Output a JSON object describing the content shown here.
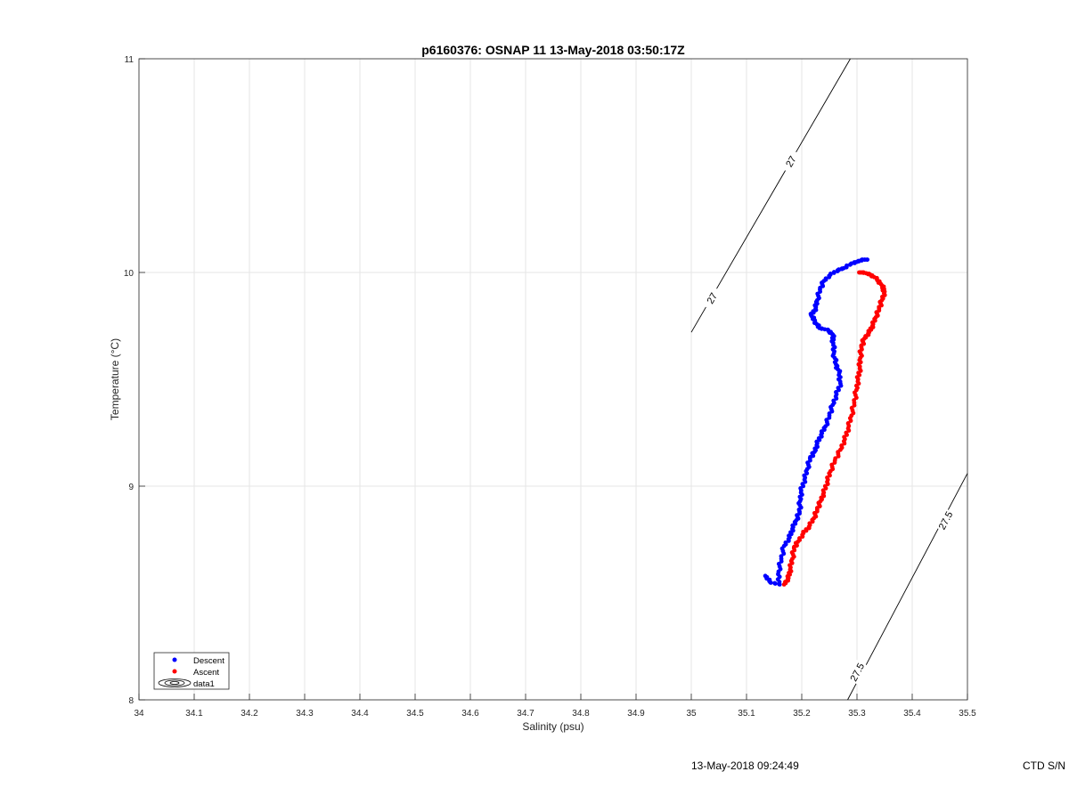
{
  "chart_data": {
    "type": "scatter",
    "title": "p6160376: OSNAP 11 13-May-2018 03:50:17Z",
    "xlabel": "Salinity (psu)",
    "ylabel": "Temperature (°C)",
    "xlim": [
      34,
      35.5
    ],
    "ylim": [
      8,
      11
    ],
    "xticks": [
      "34",
      "34.1",
      "34.2",
      "34.3",
      "34.4",
      "34.5",
      "34.6",
      "34.7",
      "34.8",
      "34.9",
      "35",
      "35.1",
      "35.2",
      "35.3",
      "35.4",
      "35.5"
    ],
    "yticks": [
      "8",
      "9",
      "10",
      "11"
    ],
    "grid": true,
    "legend_position": "bottom-left",
    "legend": [
      "Descent",
      "Ascent",
      "data1"
    ],
    "colors": {
      "descent": "#0000ff",
      "ascent": "#ff0000",
      "contour": "#000000",
      "grid": "#e6e6e6"
    },
    "series": [
      {
        "name": "Descent",
        "color": "#0000ff",
        "points": [
          [
            35.134,
            8.58
          ],
          [
            35.143,
            8.55
          ],
          [
            35.16,
            8.54
          ],
          [
            35.158,
            8.6
          ],
          [
            35.163,
            8.66
          ],
          [
            35.168,
            8.72
          ],
          [
            35.178,
            8.76
          ],
          [
            35.183,
            8.8
          ],
          [
            35.19,
            8.84
          ],
          [
            35.196,
            8.88
          ],
          [
            35.197,
            8.93
          ],
          [
            35.199,
            8.98
          ],
          [
            35.205,
            9.03
          ],
          [
            35.21,
            9.08
          ],
          [
            35.215,
            9.13
          ],
          [
            35.223,
            9.16
          ],
          [
            35.228,
            9.2
          ],
          [
            35.235,
            9.24
          ],
          [
            35.243,
            9.28
          ],
          [
            35.25,
            9.33
          ],
          [
            35.256,
            9.38
          ],
          [
            35.263,
            9.43
          ],
          [
            35.27,
            9.48
          ],
          [
            35.268,
            9.53
          ],
          [
            35.262,
            9.57
          ],
          [
            35.258,
            9.62
          ],
          [
            35.257,
            9.67
          ],
          [
            35.256,
            9.71
          ],
          [
            35.248,
            9.73
          ],
          [
            35.232,
            9.74
          ],
          [
            35.224,
            9.77
          ],
          [
            35.217,
            9.8
          ],
          [
            35.225,
            9.83
          ],
          [
            35.228,
            9.87
          ],
          [
            35.233,
            9.92
          ],
          [
            35.24,
            9.96
          ],
          [
            35.252,
            9.99
          ],
          [
            35.265,
            10.01
          ],
          [
            35.276,
            10.02
          ],
          [
            35.289,
            10.04
          ],
          [
            35.3,
            10.05
          ],
          [
            35.31,
            10.06
          ],
          [
            35.318,
            10.06
          ]
        ]
      },
      {
        "name": "Ascent",
        "color": "#ff0000",
        "points": [
          [
            35.168,
            8.54
          ],
          [
            35.176,
            8.57
          ],
          [
            35.179,
            8.61
          ],
          [
            35.183,
            8.66
          ],
          [
            35.186,
            8.71
          ],
          [
            35.193,
            8.74
          ],
          [
            35.203,
            8.78
          ],
          [
            35.213,
            8.81
          ],
          [
            35.222,
            8.85
          ],
          [
            35.228,
            8.89
          ],
          [
            35.234,
            8.93
          ],
          [
            35.24,
            8.97
          ],
          [
            35.246,
            9.02
          ],
          [
            35.252,
            9.07
          ],
          [
            35.26,
            9.12
          ],
          [
            35.27,
            9.17
          ],
          [
            35.278,
            9.22
          ],
          [
            35.284,
            9.27
          ],
          [
            35.29,
            9.33
          ],
          [
            35.295,
            9.39
          ],
          [
            35.299,
            9.45
          ],
          [
            35.302,
            9.5
          ],
          [
            35.305,
            9.55
          ],
          [
            35.306,
            9.6
          ],
          [
            35.308,
            9.65
          ],
          [
            35.313,
            9.69
          ],
          [
            35.322,
            9.72
          ],
          [
            35.328,
            9.75
          ],
          [
            35.334,
            9.79
          ],
          [
            35.34,
            9.83
          ],
          [
            35.345,
            9.87
          ],
          [
            35.35,
            9.91
          ],
          [
            35.345,
            9.94
          ],
          [
            35.336,
            9.97
          ],
          [
            35.324,
            9.99
          ],
          [
            35.312,
            10.0
          ],
          [
            35.304,
            10.0
          ]
        ]
      }
    ],
    "contours": [
      {
        "label": "27",
        "points": [
          [
            35.0,
            9.72
          ],
          [
            35.288,
            11.0
          ]
        ],
        "labels_at": [
          [
            35.037,
            9.88
          ],
          [
            35.18,
            10.52
          ]
        ]
      },
      {
        "label": "27.5",
        "points": [
          [
            35.283,
            8.0
          ],
          [
            35.5,
            9.06
          ]
        ],
        "labels_at": [
          [
            35.3,
            8.13
          ],
          [
            35.46,
            8.84
          ]
        ]
      }
    ]
  },
  "footer": {
    "date_text": "13-May-2018 09:24:49",
    "ctd_text": "CTD S/N"
  }
}
